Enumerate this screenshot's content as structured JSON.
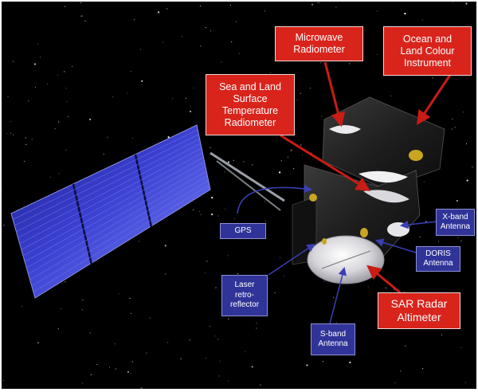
{
  "image": {
    "background": "#000000",
    "frame": "#ffffff"
  },
  "colors": {
    "red_label": "#d9241c",
    "blue_label": "#303498",
    "leader_blue": "#3a3fb5",
    "leader_red": "#c91c14",
    "panel_blue": "#2f35c8"
  },
  "labels": {
    "microwave_radiometer": "Microwave\nRadiometer",
    "ocean_land_colour": "Ocean and\nLand Colour\nInstrument",
    "slstr": "Sea and Land\nSurface\nTemperature\nRadiometer",
    "gps": "GPS",
    "x_band": "X-band\nAntenna",
    "doris": "DORIS\nAntenna",
    "laser": "Laser\nretro-\nreflector",
    "sar_altimeter": "SAR Radar\nAltimeter",
    "s_band": "S-band\nAntenna"
  }
}
